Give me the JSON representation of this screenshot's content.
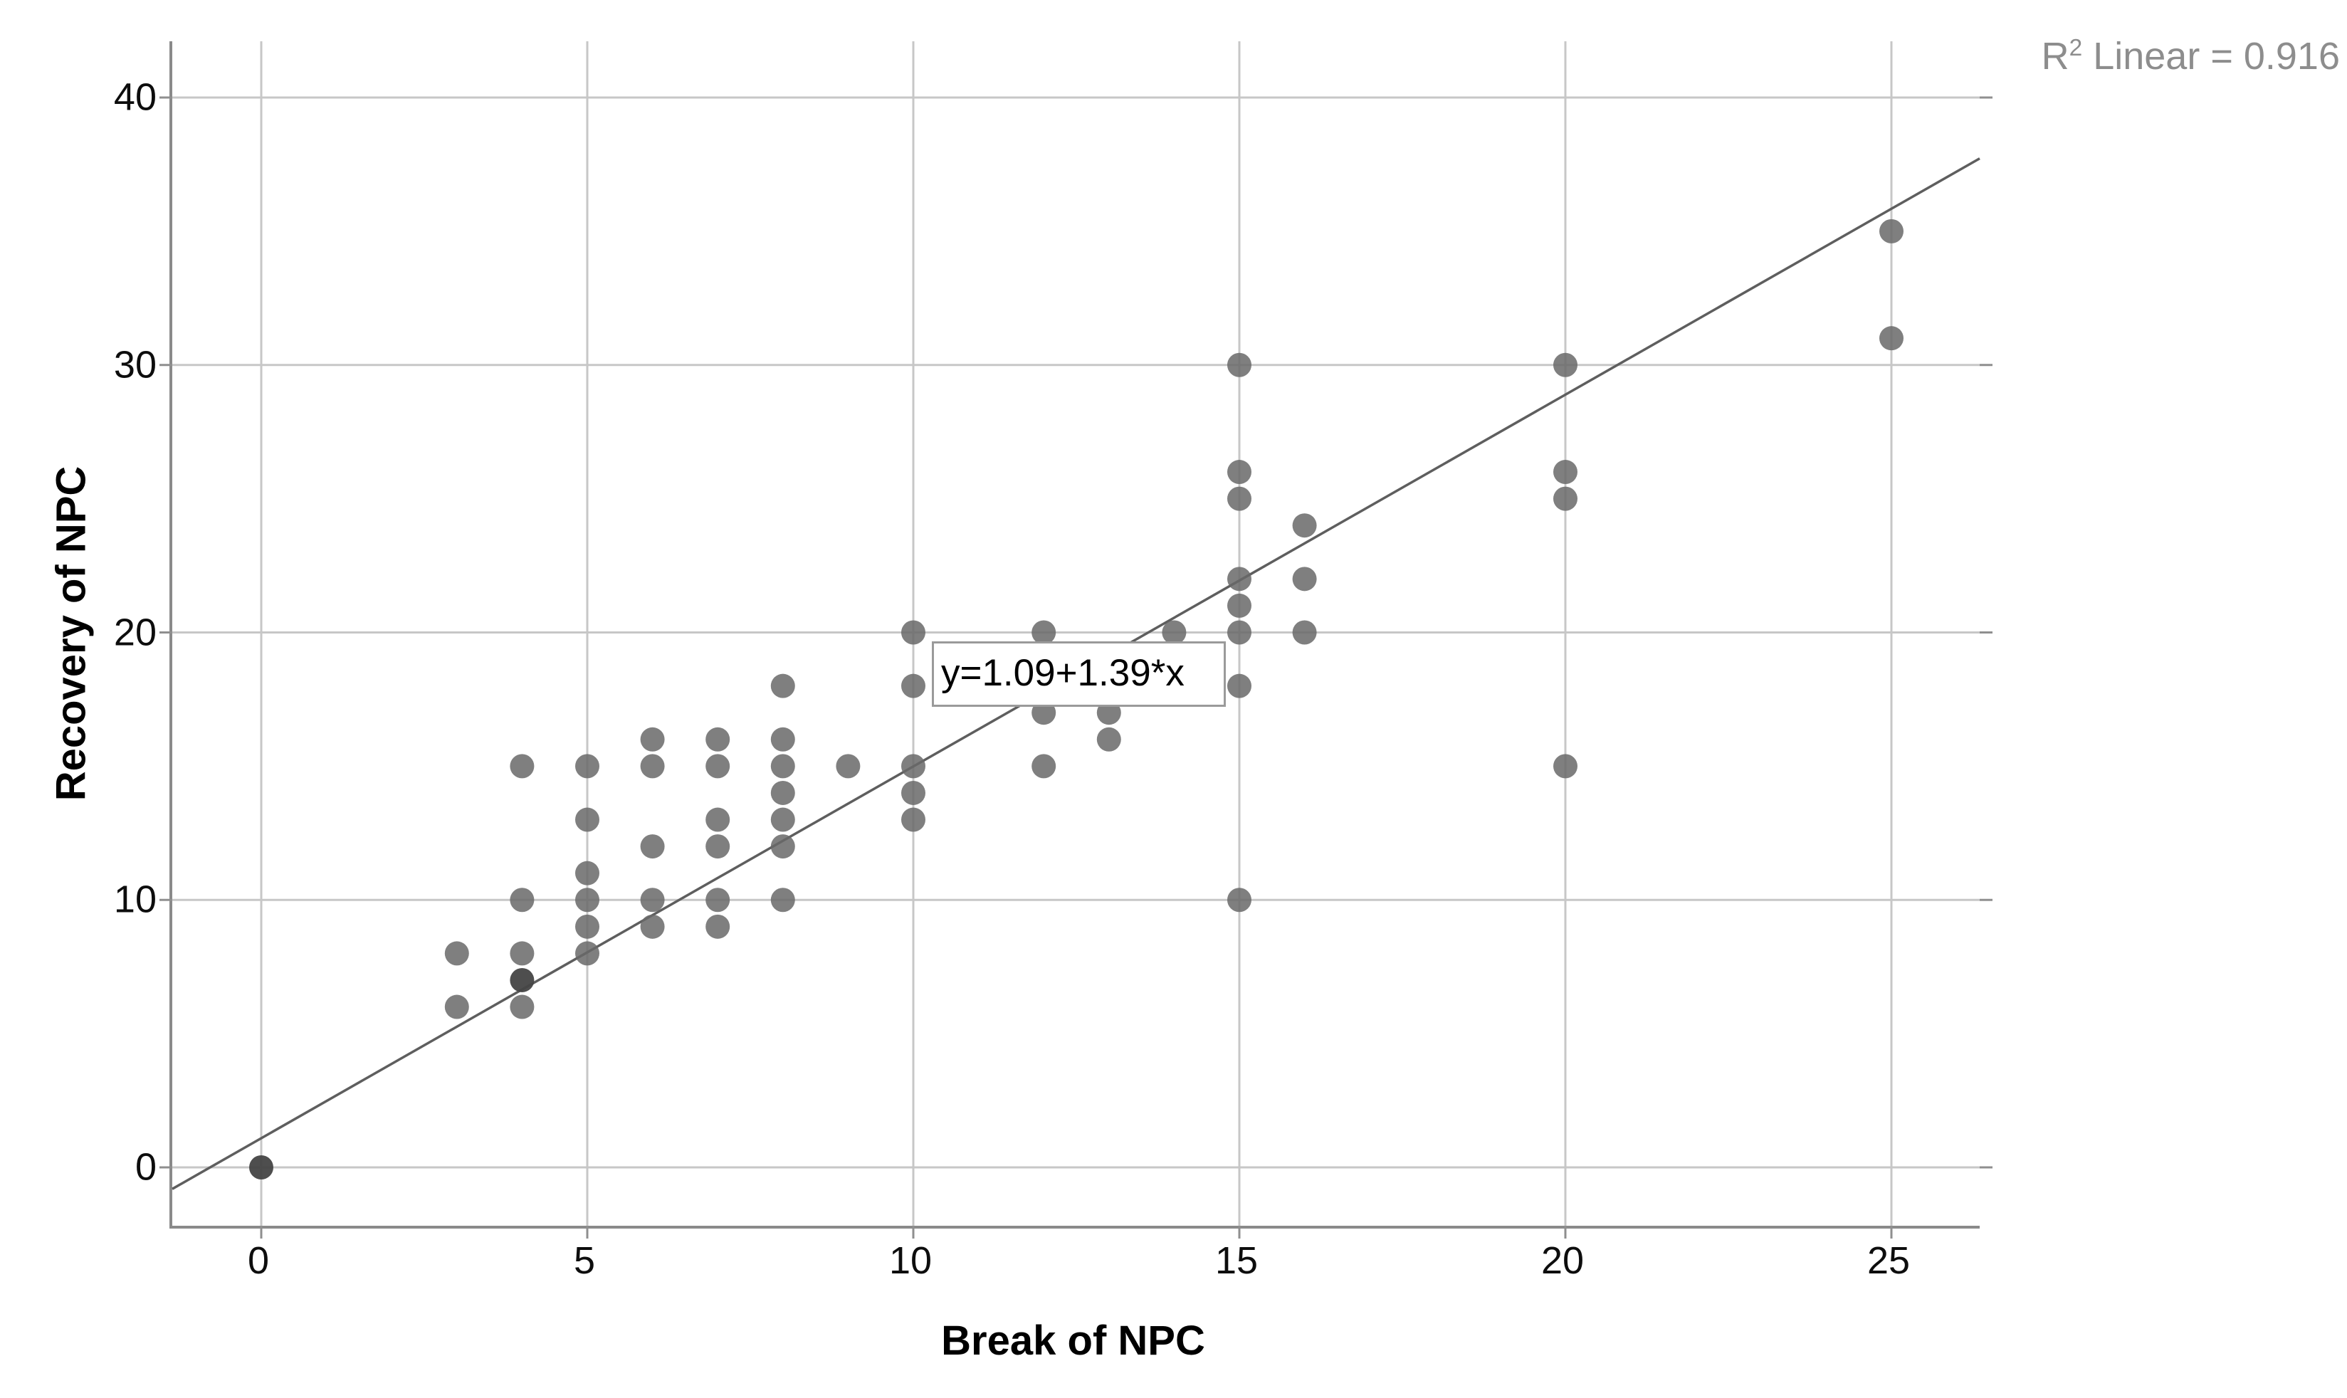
{
  "annotations": {
    "r2_prefix": "R",
    "r2_sup": "2",
    "r2_rest": " Linear = 0.916",
    "equation": "y=1.09+1.39*x"
  },
  "chart_data": {
    "type": "scatter",
    "title": "",
    "xlabel": "Break of NPC",
    "ylabel": "Recovery of NPC",
    "x_ticks": [
      0,
      5,
      10,
      15,
      20,
      25
    ],
    "y_ticks": [
      0,
      10,
      20,
      30,
      40
    ],
    "xlim": [
      -1.36,
      26.35
    ],
    "ylim": [
      -2.18,
      42.1
    ],
    "grid": true,
    "legend": null,
    "points": [
      [
        0,
        0
      ],
      [
        3,
        6
      ],
      [
        3,
        8
      ],
      [
        4,
        6
      ],
      [
        4,
        7
      ],
      [
        4,
        8
      ],
      [
        4,
        10
      ],
      [
        4,
        15
      ],
      [
        5,
        8
      ],
      [
        5,
        9
      ],
      [
        5,
        10
      ],
      [
        5,
        11
      ],
      [
        5,
        13
      ],
      [
        5,
        15
      ],
      [
        6,
        9
      ],
      [
        6,
        10
      ],
      [
        6,
        12
      ],
      [
        6,
        15
      ],
      [
        6,
        16
      ],
      [
        7,
        9
      ],
      [
        7,
        10
      ],
      [
        7,
        12
      ],
      [
        7,
        13
      ],
      [
        7,
        15
      ],
      [
        7,
        16
      ],
      [
        8,
        10
      ],
      [
        8,
        12
      ],
      [
        8,
        13
      ],
      [
        8,
        14
      ],
      [
        8,
        15
      ],
      [
        8,
        16
      ],
      [
        8,
        18
      ],
      [
        9,
        15
      ],
      [
        10,
        13
      ],
      [
        10,
        14
      ],
      [
        10,
        15
      ],
      [
        10,
        18
      ],
      [
        10,
        20
      ],
      [
        12,
        15
      ],
      [
        12,
        17
      ],
      [
        12,
        20
      ],
      [
        13,
        16
      ],
      [
        13,
        17
      ],
      [
        14,
        20
      ],
      [
        15,
        10
      ],
      [
        15,
        18
      ],
      [
        15,
        20
      ],
      [
        15,
        21
      ],
      [
        15,
        22
      ],
      [
        15,
        25
      ],
      [
        15,
        26
      ],
      [
        15,
        30
      ],
      [
        16,
        20
      ],
      [
        16,
        22
      ],
      [
        16,
        24
      ],
      [
        20,
        15
      ],
      [
        20,
        25
      ],
      [
        20,
        26
      ],
      [
        20,
        30
      ],
      [
        25,
        31
      ],
      [
        25,
        35
      ]
    ],
    "overlapping_points": [
      [
        0,
        0
      ],
      [
        4,
        7
      ]
    ],
    "regression": {
      "slope": 1.39,
      "intercept": 1.09,
      "r2_linear": 0.916
    }
  },
  "colors": {
    "point": "#696969",
    "point_overlap": "#454545",
    "gridline": "#c7c7c7",
    "frame": "#8a8a8a",
    "tick": "#8f8f8f",
    "regression_line": "#5e5e5e",
    "tick_label": "#0d0d0d",
    "r2_text": "#8d8d8d",
    "equation_border": "#9a9a9a"
  }
}
